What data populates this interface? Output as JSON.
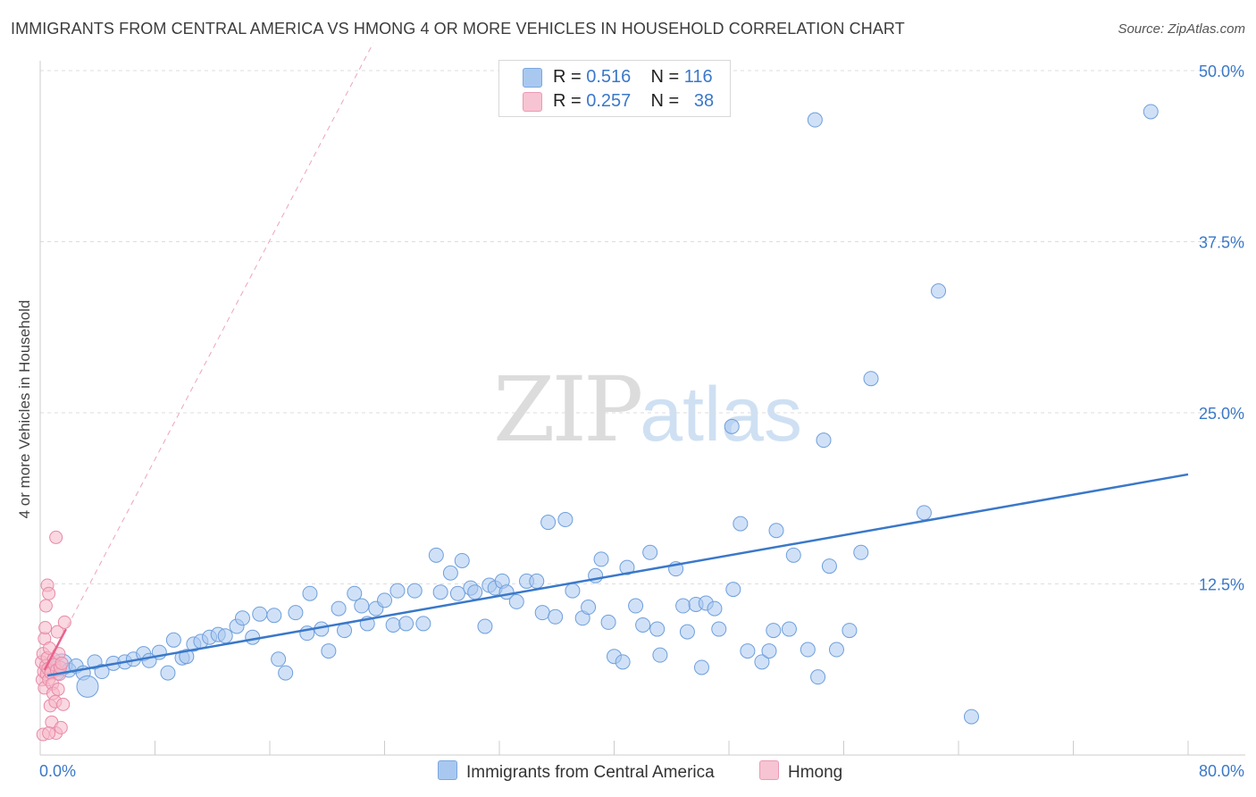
{
  "header": {
    "title": "IMMIGRANTS FROM CENTRAL AMERICA VS HMONG 4 OR MORE VEHICLES IN HOUSEHOLD CORRELATION CHART",
    "source": "Source: ZipAtlas.com"
  },
  "legend": {
    "rows": [
      {
        "r_label": "R =",
        "r_value": "0.516",
        "n_label": "N =",
        "n_value": "116",
        "color": "#a9c8f0"
      },
      {
        "r_label": "R =",
        "r_value": "0.257",
        "n_label": "N =",
        "n_value": "38",
        "color": "#f6b8c9"
      }
    ],
    "bottom": [
      "Immigrants from Central America",
      "Hmong"
    ]
  },
  "watermark": {
    "zip": "ZIP",
    "atlas": "atlas"
  },
  "colors": {
    "blue": "#3a78c9",
    "blue_fill": "#a9c8f0",
    "pink": "#e8638c",
    "pink_fill": "#f6b8c9",
    "grid": "#dddddd"
  },
  "chart_data": {
    "type": "scatter",
    "xlabel": "",
    "ylabel": "4 or more Vehicles in Household",
    "xlim": [
      0,
      80
    ],
    "ylim": [
      0,
      50
    ],
    "x_tick_labels": [
      "0.0%",
      "80.0%"
    ],
    "y_tick_labels": [
      "12.5%",
      "25.0%",
      "37.5%",
      "50.0%"
    ],
    "y_ticks": [
      12.5,
      25,
      37.5,
      50
    ],
    "grid": true,
    "series": [
      {
        "name": "Immigrants from Central America",
        "color": "#3a78c9",
        "trend": [
          [
            0.5,
            5.8
          ],
          [
            80,
            20.5
          ]
        ],
        "points": [
          [
            0.8,
            6.4,
            1
          ],
          [
            1.2,
            6.0,
            1
          ],
          [
            1.5,
            6.6,
            2
          ],
          [
            2.0,
            6.2,
            1
          ],
          [
            2.5,
            6.5,
            1
          ],
          [
            3.0,
            6.0,
            1
          ],
          [
            3.3,
            5.0,
            2
          ],
          [
            3.8,
            6.8,
            1
          ],
          [
            4.3,
            6.1,
            1
          ],
          [
            5.1,
            6.7,
            1
          ],
          [
            5.9,
            6.8,
            1
          ],
          [
            6.5,
            7.0,
            1
          ],
          [
            7.2,
            7.4,
            1
          ],
          [
            7.6,
            6.9,
            1
          ],
          [
            8.3,
            7.5,
            1
          ],
          [
            8.9,
            6.0,
            1
          ],
          [
            9.3,
            8.4,
            1
          ],
          [
            9.9,
            7.1,
            1
          ],
          [
            10.2,
            7.2,
            1
          ],
          [
            10.7,
            8.1,
            1
          ],
          [
            11.2,
            8.3,
            1
          ],
          [
            11.8,
            8.6,
            1
          ],
          [
            12.4,
            8.8,
            1
          ],
          [
            12.9,
            8.7,
            1
          ],
          [
            13.7,
            9.4,
            1
          ],
          [
            14.1,
            10.0,
            1
          ],
          [
            14.8,
            8.6,
            1
          ],
          [
            15.3,
            10.3,
            1
          ],
          [
            16.3,
            10.2,
            1
          ],
          [
            16.6,
            7.0,
            1
          ],
          [
            17.1,
            6.0,
            1
          ],
          [
            17.8,
            10.4,
            1
          ],
          [
            18.6,
            8.9,
            1
          ],
          [
            18.8,
            11.8,
            1
          ],
          [
            19.6,
            9.2,
            1
          ],
          [
            20.1,
            7.6,
            1
          ],
          [
            20.8,
            10.7,
            1
          ],
          [
            21.2,
            9.1,
            1
          ],
          [
            21.9,
            11.8,
            1
          ],
          [
            22.4,
            10.9,
            1
          ],
          [
            22.8,
            9.6,
            1
          ],
          [
            23.4,
            10.7,
            1
          ],
          [
            24.0,
            11.3,
            1
          ],
          [
            24.6,
            9.5,
            1
          ],
          [
            24.9,
            12.0,
            1
          ],
          [
            25.5,
            9.6,
            1
          ],
          [
            26.1,
            12.0,
            1
          ],
          [
            26.7,
            9.6,
            1
          ],
          [
            27.6,
            14.6,
            1
          ],
          [
            27.9,
            11.9,
            1
          ],
          [
            28.6,
            13.3,
            1
          ],
          [
            29.1,
            11.8,
            1
          ],
          [
            29.4,
            14.2,
            1
          ],
          [
            30.0,
            12.2,
            1
          ],
          [
            30.3,
            11.9,
            1
          ],
          [
            31.0,
            9.4,
            1
          ],
          [
            31.3,
            12.4,
            1
          ],
          [
            31.7,
            12.2,
            1
          ],
          [
            32.2,
            12.7,
            1
          ],
          [
            32.5,
            11.9,
            1
          ],
          [
            33.2,
            11.2,
            1
          ],
          [
            33.9,
            12.7,
            1
          ],
          [
            34.6,
            12.7,
            1
          ],
          [
            35.0,
            10.4,
            1
          ],
          [
            35.4,
            17.0,
            1
          ],
          [
            35.9,
            10.1,
            1
          ],
          [
            36.6,
            17.2,
            1
          ],
          [
            37.1,
            12.0,
            1
          ],
          [
            37.8,
            10.0,
            1
          ],
          [
            38.2,
            10.8,
            1
          ],
          [
            38.7,
            13.1,
            1
          ],
          [
            39.1,
            14.3,
            1
          ],
          [
            39.6,
            9.7,
            1
          ],
          [
            40.0,
            7.2,
            1
          ],
          [
            40.6,
            6.8,
            1
          ],
          [
            40.9,
            13.7,
            1
          ],
          [
            41.5,
            10.9,
            1
          ],
          [
            42.0,
            9.5,
            1
          ],
          [
            42.5,
            14.8,
            1
          ],
          [
            43.0,
            9.2,
            1
          ],
          [
            43.2,
            7.3,
            1
          ],
          [
            44.3,
            13.6,
            1
          ],
          [
            44.8,
            10.9,
            1
          ],
          [
            45.1,
            9.0,
            1
          ],
          [
            45.7,
            11.0,
            1
          ],
          [
            46.1,
            6.4,
            1
          ],
          [
            46.4,
            11.1,
            1
          ],
          [
            47.0,
            10.7,
            1
          ],
          [
            47.3,
            9.2,
            1
          ],
          [
            48.3,
            12.1,
            1
          ],
          [
            48.8,
            16.9,
            1
          ],
          [
            49.3,
            7.6,
            1
          ],
          [
            50.3,
            6.8,
            1
          ],
          [
            50.8,
            7.6,
            1
          ],
          [
            51.1,
            9.1,
            1
          ],
          [
            51.3,
            16.4,
            1
          ],
          [
            52.2,
            9.2,
            1
          ],
          [
            52.5,
            14.6,
            1
          ],
          [
            53.5,
            7.7,
            1
          ],
          [
            54.0,
            46.4,
            1
          ],
          [
            54.2,
            5.7,
            1
          ],
          [
            54.6,
            23.0,
            1
          ],
          [
            55.0,
            13.8,
            1
          ],
          [
            55.5,
            7.7,
            1
          ],
          [
            56.4,
            9.1,
            1
          ],
          [
            57.2,
            14.8,
            1
          ],
          [
            57.9,
            27.5,
            1
          ],
          [
            61.6,
            17.7,
            1
          ],
          [
            62.6,
            33.9,
            1
          ],
          [
            64.9,
            2.8,
            1
          ],
          [
            48.2,
            24.0,
            1
          ],
          [
            77.4,
            47.0,
            1
          ]
        ]
      },
      {
        "name": "Hmong",
        "color": "#e8638c",
        "trend": [
          [
            0.3,
            6.2
          ],
          [
            1.8,
            9.2
          ]
        ],
        "points": [
          [
            0.1,
            6.8,
            1
          ],
          [
            0.15,
            5.5,
            1
          ],
          [
            0.2,
            7.4,
            1
          ],
          [
            0.25,
            6.1,
            1
          ],
          [
            0.3,
            4.9,
            1
          ],
          [
            0.3,
            8.5,
            1
          ],
          [
            0.35,
            9.3,
            1
          ],
          [
            0.4,
            6.5,
            1
          ],
          [
            0.4,
            10.9,
            1
          ],
          [
            0.45,
            5.9,
            1
          ],
          [
            0.5,
            7.1,
            1
          ],
          [
            0.5,
            12.4,
            1
          ],
          [
            0.55,
            6.3,
            1
          ],
          [
            0.6,
            5.5,
            1
          ],
          [
            0.6,
            11.8,
            1
          ],
          [
            0.65,
            7.8,
            1
          ],
          [
            0.7,
            3.6,
            1
          ],
          [
            0.75,
            6.0,
            1
          ],
          [
            0.8,
            2.4,
            1
          ],
          [
            0.85,
            5.2,
            1
          ],
          [
            0.9,
            4.5,
            1
          ],
          [
            0.95,
            7.0,
            1
          ],
          [
            1.0,
            6.6,
            1
          ],
          [
            1.05,
            3.9,
            1
          ],
          [
            1.1,
            1.6,
            1
          ],
          [
            1.15,
            6.2,
            1
          ],
          [
            1.2,
            9.0,
            1
          ],
          [
            1.25,
            4.8,
            1
          ],
          [
            1.3,
            7.4,
            1
          ],
          [
            1.35,
            5.9,
            1
          ],
          [
            1.4,
            6.4,
            1
          ],
          [
            1.45,
            2.0,
            1
          ],
          [
            1.1,
            15.9,
            1
          ],
          [
            1.6,
            3.7,
            1
          ],
          [
            1.7,
            9.7,
            1
          ],
          [
            0.2,
            1.5,
            1
          ],
          [
            0.6,
            1.6,
            1
          ],
          [
            1.5,
            6.7,
            1
          ]
        ]
      }
    ]
  }
}
